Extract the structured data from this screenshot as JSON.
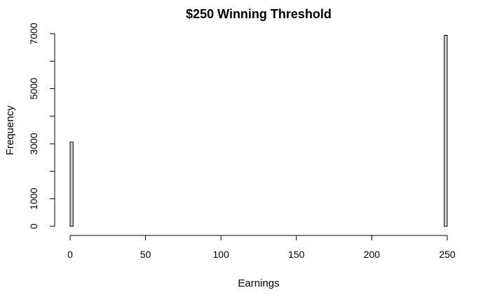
{
  "chart_data": {
    "type": "bar",
    "title": "$250 Winning Threshold",
    "xlabel": "Earnings",
    "ylabel": "Frequency",
    "xlim": [
      0,
      250
    ],
    "ylim": [
      0,
      7000
    ],
    "x_ticks": [
      0,
      50,
      100,
      150,
      200,
      250
    ],
    "y_ticks": [
      0,
      1000,
      3000,
      5000,
      7000
    ],
    "bin_width": 2,
    "bins": [
      {
        "x0": 0,
        "x1": 2,
        "count": 3060
      },
      {
        "x0": 2,
        "x1": 248,
        "count": 0
      },
      {
        "x0": 248,
        "x1": 250,
        "count": 6940
      }
    ],
    "bar_fill": "#d3d3d3",
    "grid": false
  }
}
